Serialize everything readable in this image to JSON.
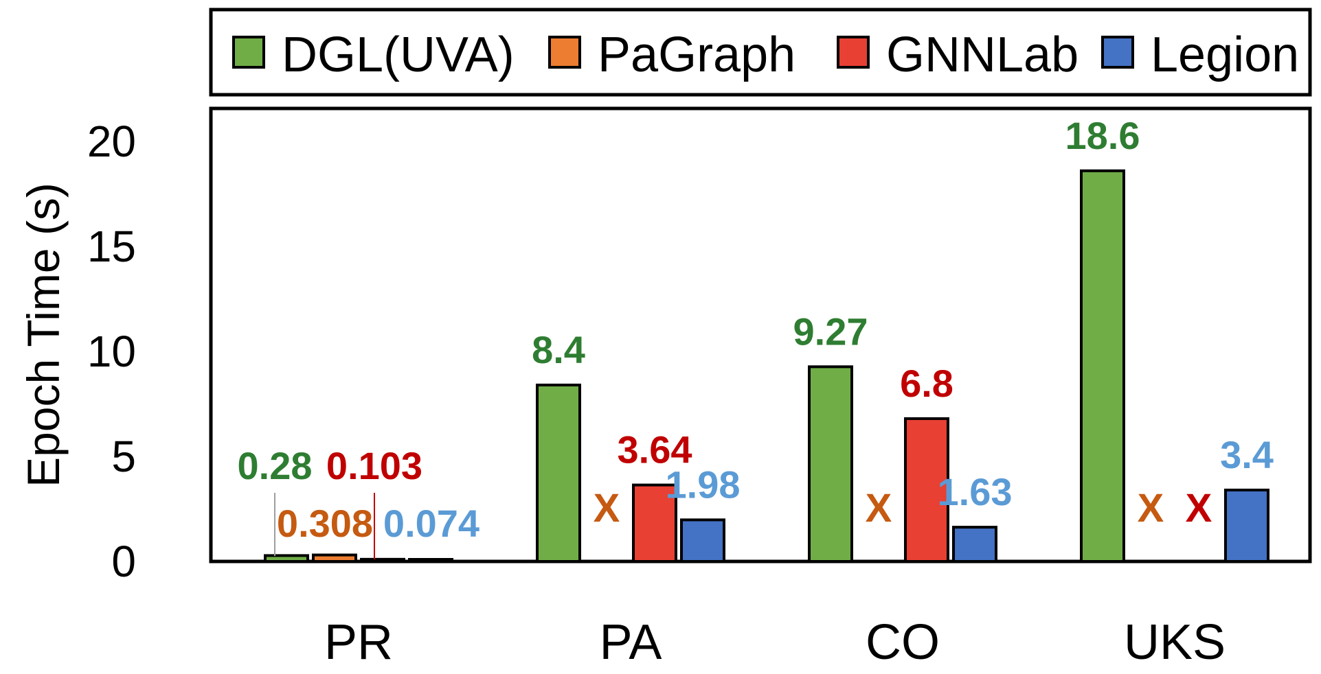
{
  "chart_data": {
    "type": "bar",
    "title": "",
    "xlabel": "",
    "ylabel": "Epoch Time (s)",
    "ylim": [
      0,
      21
    ],
    "yticks": [
      0,
      5,
      10,
      15,
      20
    ],
    "grid": false,
    "legend_position": "top",
    "categories": [
      "PR",
      "PA",
      "CO",
      "UKS"
    ],
    "series": [
      {
        "name": "DGL(UVA)",
        "color": "#70AD47",
        "label_color": "#2E7D32",
        "values": [
          0.28,
          8.4,
          9.27,
          18.6
        ],
        "labels": [
          "0.28",
          "8.4",
          "9.27",
          "18.6"
        ]
      },
      {
        "name": "PaGraph",
        "color": "#ED7D31",
        "label_color": "#C55A11",
        "values": [
          0.308,
          null,
          null,
          null
        ],
        "labels": [
          "0.308",
          "X",
          "X",
          "X"
        ]
      },
      {
        "name": "GNNLab",
        "color": "#E84033",
        "label_color": "#C00000",
        "values": [
          0.103,
          3.64,
          6.8,
          null
        ],
        "labels": [
          "0.103",
          "3.64",
          "6.8",
          "X"
        ]
      },
      {
        "name": "Legion",
        "color": "#4472C4",
        "label_color": "#5B9BD5",
        "values": [
          0.074,
          1.98,
          1.63,
          3.4
        ],
        "labels": [
          "0.074",
          "1.98",
          "1.63",
          "3.4"
        ]
      }
    ]
  }
}
